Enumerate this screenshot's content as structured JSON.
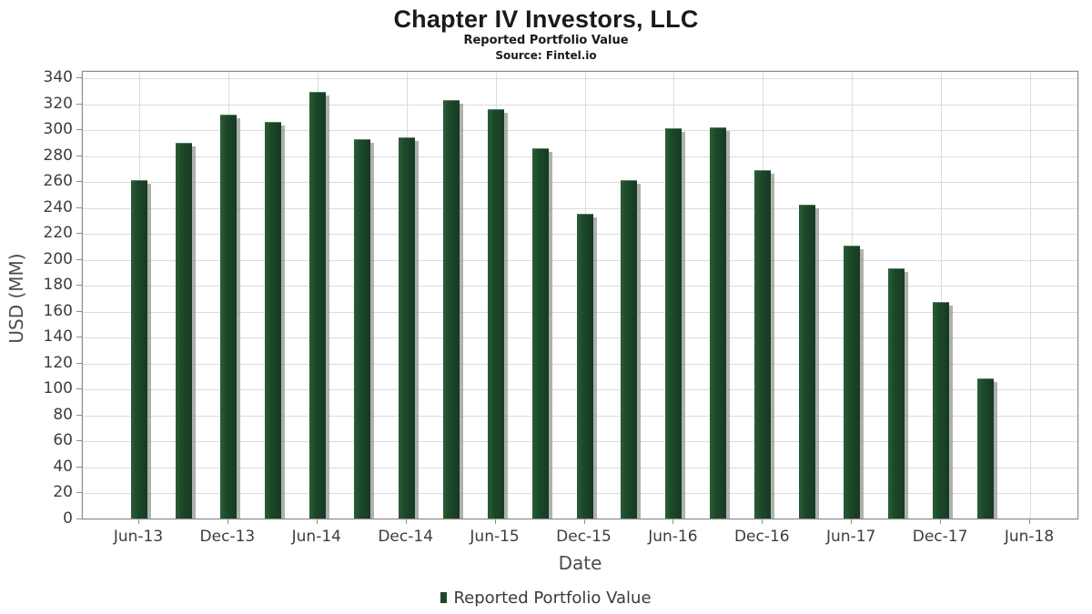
{
  "header": {
    "title": "Chapter IV Investors, LLC",
    "subtitle": "Reported Portfolio Value",
    "source": "Source: Fintel.io"
  },
  "colors": {
    "bar_green": "#1b4829",
    "shadow_gray": "#808080",
    "grid_gray": "#dcdcdc",
    "axis_text": "#3d3d3d"
  },
  "chart_data": {
    "type": "bar",
    "title": "Chapter IV Investors, LLC",
    "subtitle": "Reported Portfolio Value",
    "source": "Source: Fintel.io",
    "xlabel": "Date",
    "ylabel": "USD (MM)",
    "ylim": [
      0,
      340
    ],
    "ytick_step": 20,
    "grid": true,
    "legend": {
      "position": "bottom",
      "label": "Reported Portfolio Value"
    },
    "categories": [
      "Jun-13",
      "Sep-13",
      "Dec-13",
      "Mar-14",
      "Jun-14",
      "Sep-14",
      "Dec-14",
      "Mar-15",
      "Jun-15",
      "Sep-15",
      "Dec-15",
      "Mar-16",
      "Jun-16",
      "Sep-16",
      "Dec-16",
      "Mar-17",
      "Jun-17",
      "Sep-17",
      "Dec-17",
      "Mar-18"
    ],
    "values": [
      260,
      289,
      311,
      305,
      328,
      292,
      293,
      322,
      315,
      285,
      234,
      260,
      300,
      301,
      268,
      241,
      210,
      192,
      166,
      107
    ],
    "x_tick_labels": [
      "Jun-13",
      "Dec-13",
      "Jun-14",
      "Dec-14",
      "Jun-15",
      "Dec-15",
      "Jun-16",
      "Dec-16",
      "Jun-17",
      "Dec-17",
      "Jun-18"
    ],
    "series_name": "Reported Portfolio Value"
  }
}
